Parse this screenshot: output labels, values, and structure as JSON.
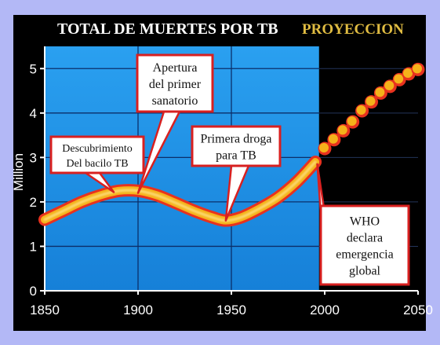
{
  "chart_data": {
    "type": "line",
    "title": "TOTAL DE MUERTES POR TB",
    "title_projection": "PROYECCION",
    "ylabel": "Million",
    "xlabel": "",
    "xlim": [
      1850,
      2050
    ],
    "ylim": [
      0,
      5.5
    ],
    "x_ticks": [
      "1850",
      "1900",
      "1950",
      "2000",
      "2050"
    ],
    "y_ticks": [
      "0",
      "1",
      "2",
      "3",
      "4",
      "5"
    ],
    "grid": true,
    "series": [
      {
        "style": "solid",
        "x": [
          1850,
          1860,
          1870,
          1880,
          1890,
          1900,
          1910,
          1920,
          1930,
          1940,
          1947,
          1955,
          1965,
          1975,
          1985,
          1995
        ],
        "y": [
          1.6,
          1.8,
          2.0,
          2.15,
          2.25,
          2.25,
          2.15,
          1.98,
          1.8,
          1.65,
          1.58,
          1.65,
          1.85,
          2.1,
          2.45,
          2.9
        ]
      },
      {
        "style": "dotted",
        "x": [
          2000,
          2005,
          2010,
          2015,
          2020,
          2025,
          2030,
          2035,
          2040,
          2045,
          2050
        ],
        "y": [
          3.2,
          3.4,
          3.6,
          3.8,
          4.05,
          4.25,
          4.45,
          4.6,
          4.75,
          4.88,
          4.98
        ]
      }
    ],
    "annotations": [
      {
        "lines": [
          "Descubrimiento",
          "Del bacilo TB"
        ]
      },
      {
        "lines": [
          "Apertura",
          "del primer",
          "sanatorio"
        ]
      },
      {
        "lines": [
          "Primera droga",
          "para TB"
        ]
      },
      {
        "lines": [
          "WHO",
          "declara",
          "emergencia",
          "global"
        ]
      }
    ],
    "colors": {
      "historical_bg": "#1a97e8",
      "projection_bg": "#000000",
      "line": "#f5b21a",
      "line_edge": "#e8321e",
      "grid": "#000000",
      "title": "#ffffff",
      "projection_title": "#e0bc42"
    }
  }
}
